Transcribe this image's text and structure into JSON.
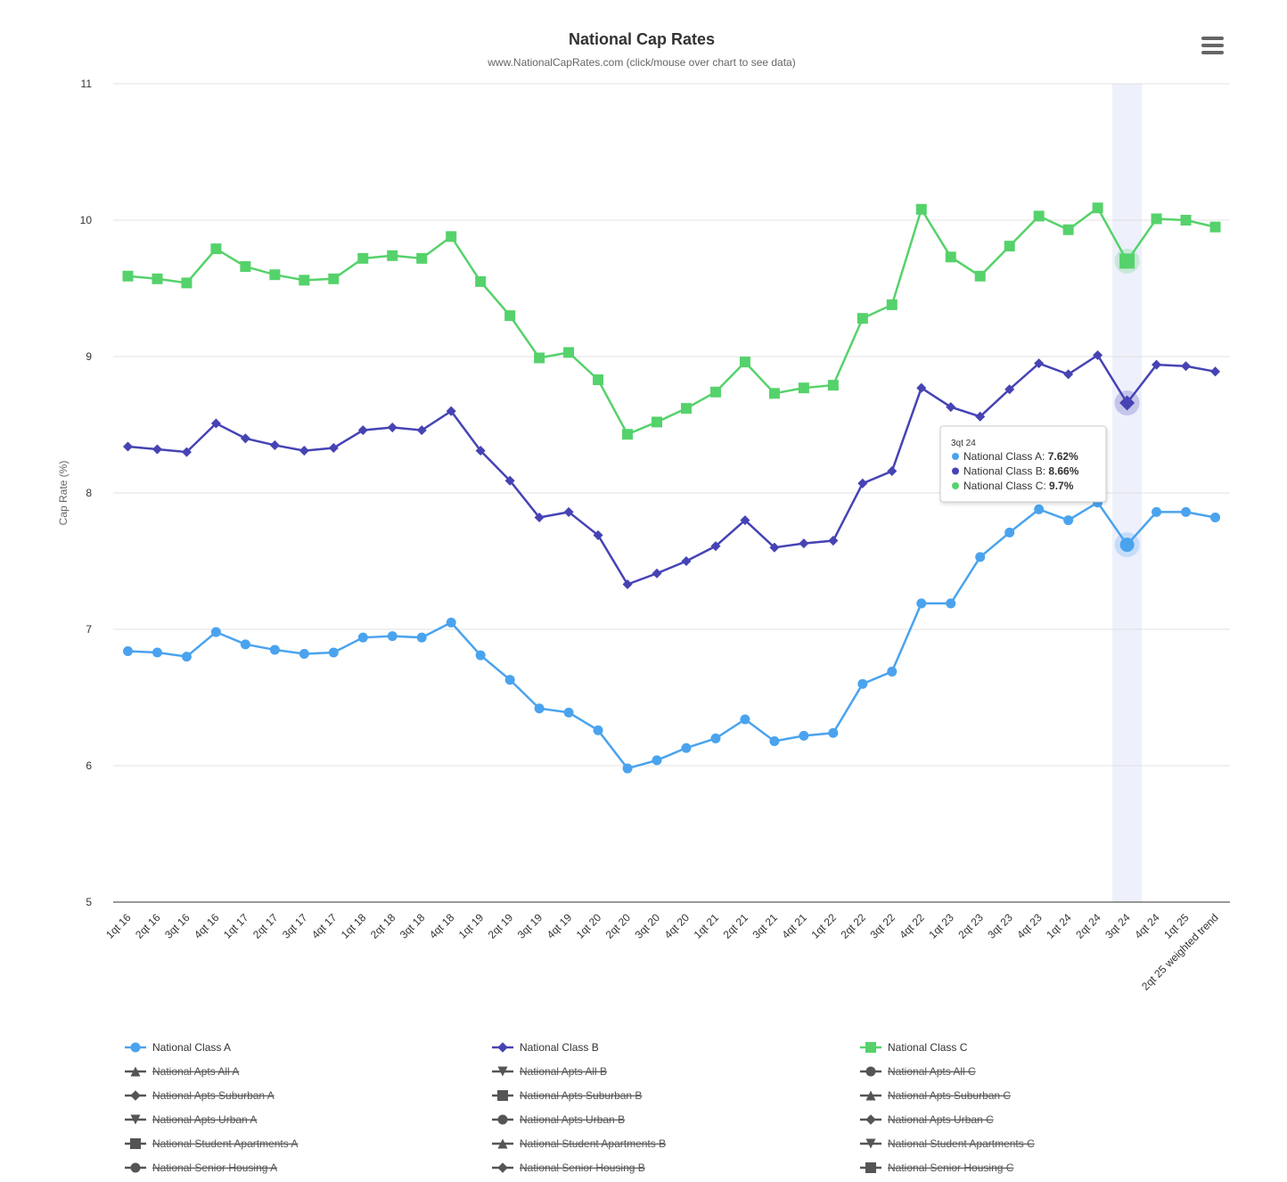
{
  "menu_icon": "hamburger-menu-icon",
  "tooltip": {
    "category": "3qt 24",
    "rows": [
      {
        "label": "National Class A: ",
        "value": "7.62%",
        "color": "#4aa3ee"
      },
      {
        "label": "National Class B: ",
        "value": "8.66%",
        "color": "#4643b4"
      },
      {
        "label": "National Class C: ",
        "value": "9.7%",
        "color": "#55d26b"
      }
    ]
  },
  "legend": [
    {
      "name": "National Class A",
      "symbol": "circle",
      "visible": true,
      "color": "#4aa3ee"
    },
    {
      "name": "National Class B",
      "symbol": "diamond",
      "visible": true,
      "color": "#4643b4"
    },
    {
      "name": "National Class C",
      "symbol": "square",
      "visible": true,
      "color": "#55d26b"
    },
    {
      "name": "National Apts All A",
      "symbol": "triangle",
      "visible": false,
      "color": "#555555"
    },
    {
      "name": "National Apts All B",
      "symbol": "triangle-down",
      "visible": false,
      "color": "#555555"
    },
    {
      "name": "National Apts All C",
      "symbol": "circle",
      "visible": false,
      "color": "#555555"
    },
    {
      "name": "National Apts Suburban A",
      "symbol": "diamond",
      "visible": false,
      "color": "#555555"
    },
    {
      "name": "National Apts Suburban B",
      "symbol": "square",
      "visible": false,
      "color": "#555555"
    },
    {
      "name": "National Apts Suburban C",
      "symbol": "triangle",
      "visible": false,
      "color": "#555555"
    },
    {
      "name": "National Apts Urban A",
      "symbol": "triangle-down",
      "visible": false,
      "color": "#555555"
    },
    {
      "name": "National Apts Urban B",
      "symbol": "circle",
      "visible": false,
      "color": "#555555"
    },
    {
      "name": "National Apts Urban C",
      "symbol": "diamond",
      "visible": false,
      "color": "#555555"
    },
    {
      "name": "National Student Apartments A",
      "symbol": "square",
      "visible": false,
      "color": "#555555"
    },
    {
      "name": "National Student Apartments B",
      "symbol": "triangle",
      "visible": false,
      "color": "#555555"
    },
    {
      "name": "National Student Apartments C",
      "symbol": "triangle-down",
      "visible": false,
      "color": "#555555"
    },
    {
      "name": "National Senior Housing A",
      "symbol": "circle",
      "visible": false,
      "color": "#555555"
    },
    {
      "name": "National Senior Housing B",
      "symbol": "diamond",
      "visible": false,
      "color": "#555555"
    },
    {
      "name": "National Senior Housing C",
      "symbol": "square",
      "visible": false,
      "color": "#555555"
    }
  ],
  "chart_data": {
    "type": "line",
    "title": "National Cap Rates",
    "subtitle": "www.NationalCapRates.com (click/mouse over chart to see data)",
    "ylabel": "Cap Rate (%)",
    "xlabel": "",
    "ylim": [
      5,
      11
    ],
    "yticks": [
      5,
      6,
      7,
      8,
      9,
      10,
      11
    ],
    "grid": true,
    "legend_position": "bottom",
    "highlighted_category": "3qt 24",
    "categories": [
      "1qt 16",
      "2qt 16",
      "3qt 16",
      "4qt 16",
      "1qt 17",
      "2qt 17",
      "3qt 17",
      "4qt 17",
      "1qt 18",
      "2qt 18",
      "3qt 18",
      "4qt 18",
      "1qt 19",
      "2qt 19",
      "3qt 19",
      "4qt 19",
      "1qt 20",
      "2qt 20",
      "3qt 20",
      "4qt 20",
      "1qt 21",
      "2qt 21",
      "3qt 21",
      "4qt 21",
      "1qt 22",
      "2qt 22",
      "3qt 22",
      "4qt 22",
      "1qt 23",
      "2qt 23",
      "3qt 23",
      "4qt 23",
      "1qt 24",
      "2qt 24",
      "3qt 24",
      "4qt 24",
      "1qt 25",
      "2qt 25 weighted trend"
    ],
    "series": [
      {
        "name": "National Class A",
        "color": "#4aa3ee",
        "symbol": "circle",
        "values": [
          6.84,
          6.83,
          6.8,
          6.98,
          6.89,
          6.85,
          6.82,
          6.83,
          6.94,
          6.95,
          6.94,
          7.05,
          6.81,
          6.63,
          6.42,
          6.39,
          6.26,
          5.98,
          6.04,
          6.13,
          6.2,
          6.34,
          6.18,
          6.22,
          6.24,
          6.6,
          6.69,
          7.19,
          7.19,
          7.53,
          7.71,
          7.88,
          7.8,
          7.93,
          7.62,
          7.86,
          7.86,
          7.82
        ]
      },
      {
        "name": "National Class B",
        "color": "#4643b4",
        "symbol": "diamond",
        "values": [
          8.34,
          8.32,
          8.3,
          8.51,
          8.4,
          8.35,
          8.31,
          8.33,
          8.46,
          8.48,
          8.46,
          8.6,
          8.31,
          8.09,
          7.82,
          7.86,
          7.69,
          7.33,
          7.41,
          7.5,
          7.61,
          7.8,
          7.6,
          7.63,
          7.65,
          8.07,
          8.16,
          8.77,
          8.63,
          8.56,
          8.76,
          8.95,
          8.87,
          9.01,
          8.66,
          8.94,
          8.93,
          8.89
        ]
      },
      {
        "name": "National Class C",
        "color": "#55d26b",
        "symbol": "square",
        "values": [
          9.59,
          9.57,
          9.54,
          9.79,
          9.66,
          9.6,
          9.56,
          9.57,
          9.72,
          9.74,
          9.72,
          9.88,
          9.55,
          9.3,
          8.99,
          9.03,
          8.83,
          8.43,
          8.52,
          8.62,
          8.74,
          8.96,
          8.73,
          8.77,
          8.79,
          9.28,
          9.38,
          10.08,
          9.73,
          9.59,
          9.81,
          10.03,
          9.93,
          10.09,
          9.7,
          10.01,
          10.0,
          9.95
        ]
      }
    ]
  }
}
